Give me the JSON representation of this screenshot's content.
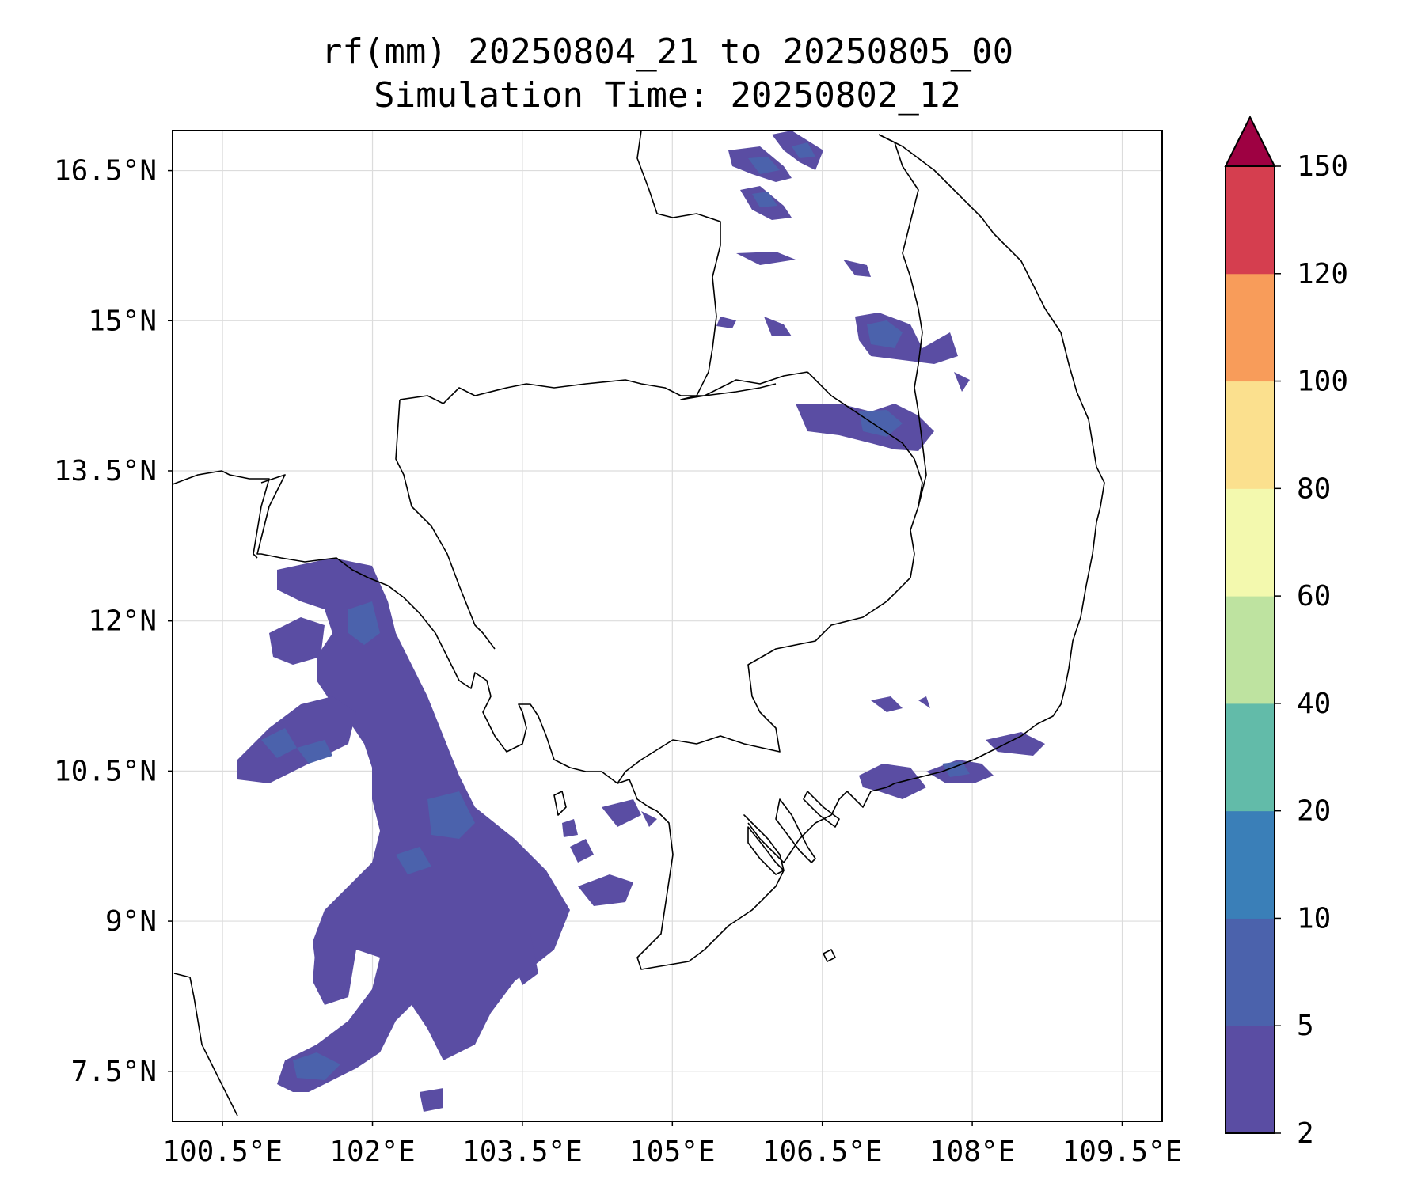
{
  "title": {
    "line1": "rf(mm) 20250804_21 to 20250805_00",
    "line2": "Simulation Time: 20250802_12"
  },
  "axes": {
    "lon_range": [
      100.0,
      109.9
    ],
    "lat_range": [
      7.0,
      16.9
    ],
    "x_ticks": [
      {
        "value": 100.5,
        "label": "100.5°E"
      },
      {
        "value": 102.0,
        "label": "102°E"
      },
      {
        "value": 103.5,
        "label": "103.5°E"
      },
      {
        "value": 105.0,
        "label": "105°E"
      },
      {
        "value": 106.5,
        "label": "106.5°E"
      },
      {
        "value": 108.0,
        "label": "108°E"
      },
      {
        "value": 109.5,
        "label": "109.5°E"
      }
    ],
    "y_ticks": [
      {
        "value": 7.5,
        "label": "7.5°N"
      },
      {
        "value": 9.0,
        "label": "9°N"
      },
      {
        "value": 10.5,
        "label": "10.5°N"
      },
      {
        "value": 12.0,
        "label": "12°N"
      },
      {
        "value": 13.5,
        "label": "13.5°N"
      },
      {
        "value": 15.0,
        "label": "15°N"
      },
      {
        "value": 16.5,
        "label": "16.5°N"
      }
    ],
    "grid": true
  },
  "colorbar": {
    "levels": [
      {
        "label": "2",
        "color": "#5a4da3"
      },
      {
        "label": "5",
        "color": "#4b62ac"
      },
      {
        "label": "10",
        "color": "#3a7fb8"
      },
      {
        "label": "20",
        "color": "#62bba9"
      },
      {
        "label": "40",
        "color": "#bee3a0"
      },
      {
        "label": "60",
        "color": "#f3f9ae"
      },
      {
        "label": "80",
        "color": "#fbe08e"
      },
      {
        "label": "100",
        "color": "#f89c5a"
      },
      {
        "label": "120",
        "color": "#d53e4f"
      },
      {
        "label": "150",
        "color": ""
      }
    ],
    "extend_color": "#9e0142"
  },
  "rain_colors": {
    "low": "#5a4da3",
    "mid": "#4b62ac",
    "high": "#3a7fb8"
  }
}
